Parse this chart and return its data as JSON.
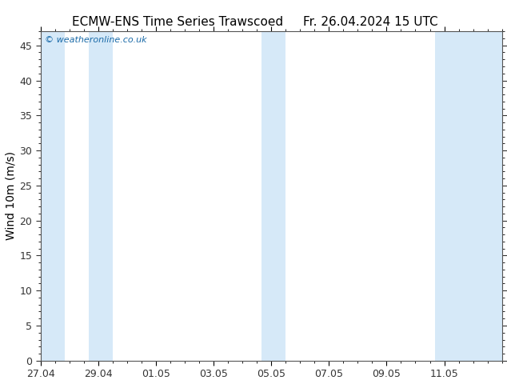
{
  "title_left": "ECMW-ENS Time Series Trawscoed",
  "title_right": "Fr. 26.04.2024 15 UTC",
  "ylabel": "Wind 10m (m/s)",
  "watermark": "© weatheronline.co.uk",
  "background_color": "#ffffff",
  "plot_bg_color": "#ffffff",
  "ylim": [
    0,
    47
  ],
  "yticks": [
    0,
    5,
    10,
    15,
    20,
    25,
    30,
    35,
    40,
    45
  ],
  "xlim": [
    0,
    16
  ],
  "xtick_labels": [
    "27.04",
    "29.04",
    "01.05",
    "03.05",
    "05.05",
    "07.05",
    "09.05",
    "11.05"
  ],
  "xtick_positions": [
    0,
    2,
    4,
    6,
    8,
    10,
    12,
    14
  ],
  "shaded_bands": [
    {
      "x_start": 0.0,
      "x_end": 0.83,
      "color": "#d6e9f8"
    },
    {
      "x_start": 1.67,
      "x_end": 2.5,
      "color": "#d6e9f8"
    },
    {
      "x_start": 7.67,
      "x_end": 8.5,
      "color": "#d6e9f8"
    },
    {
      "x_start": 13.67,
      "x_end": 16.0,
      "color": "#d6e9f8"
    }
  ],
  "title_fontsize": 11,
  "ylabel_fontsize": 10,
  "tick_fontsize": 9,
  "watermark_color": "#1a6aa8",
  "watermark_fontsize": 8,
  "spine_color": "#555555",
  "tick_color": "#333333"
}
